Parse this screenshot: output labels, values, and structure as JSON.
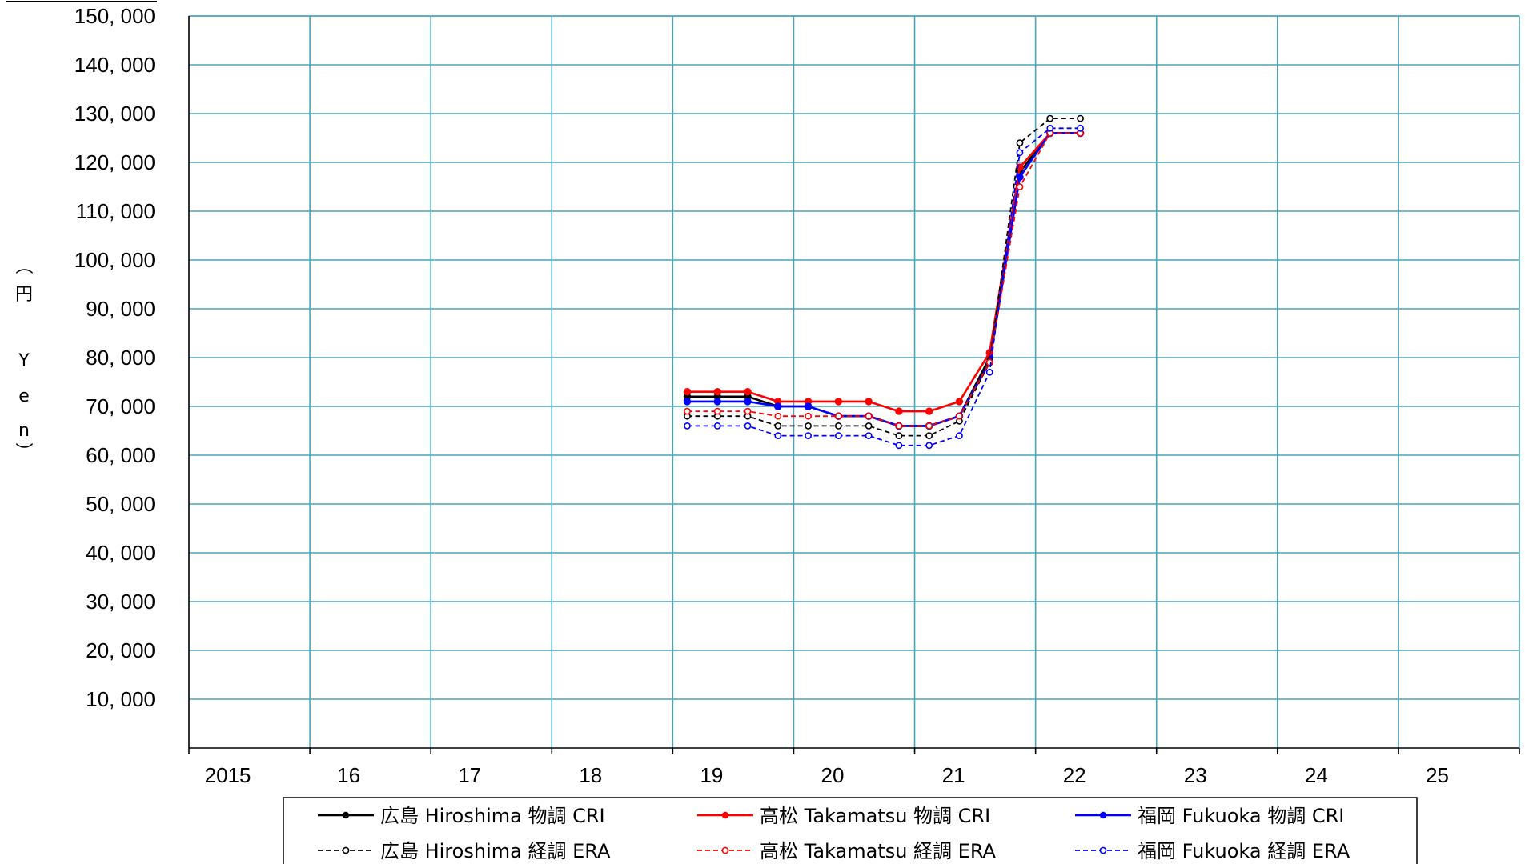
{
  "chart_data": {
    "type": "line",
    "ylabel": [
      "（",
      "円",
      "Y",
      "e",
      "n",
      "）"
    ],
    "xlim": [
      2015,
      2026
    ],
    "ylim": [
      0,
      150000
    ],
    "y_ticks": [
      10000,
      20000,
      30000,
      40000,
      50000,
      60000,
      70000,
      80000,
      90000,
      100000,
      110000,
      120000,
      130000,
      140000,
      150000
    ],
    "y_tick_labels": [
      "10, 000",
      "20, 000",
      "30, 000",
      "40, 000",
      "50, 000",
      "60, 000",
      "70, 000",
      "80, 000",
      "90, 000",
      "100, 000",
      "110, 000",
      "120, 000",
      "130, 000",
      "140, 000",
      "150, 000"
    ],
    "x_ticks": [
      2015,
      2016,
      2017,
      2018,
      2019,
      2020,
      2021,
      2022,
      2023,
      2024,
      2025
    ],
    "x_tick_labels": [
      "2015",
      "16",
      "17",
      "18",
      "19",
      "20",
      "21",
      "22",
      "23",
      "24",
      "25"
    ],
    "grid": true,
    "legend_position": "bottom",
    "x": [
      2019.12,
      2019.37,
      2019.62,
      2019.87,
      2020.12,
      2020.37,
      2020.62,
      2020.87,
      2021.12,
      2021.37,
      2021.62,
      2021.87,
      2022.12,
      2022.37
    ],
    "series": [
      {
        "name": "広島 Hiroshima 物調 CRI",
        "color": "#000000",
        "style": "solid",
        "marker": "filled",
        "values": [
          72000,
          72000,
          72000,
          70000,
          70000,
          68000,
          68000,
          66000,
          66000,
          68000,
          80000,
          118000,
          126000,
          126000
        ]
      },
      {
        "name": "高松 Takamatsu 物調 CRI",
        "color": "#ff0000",
        "style": "solid",
        "marker": "filled",
        "values": [
          73000,
          73000,
          73000,
          71000,
          71000,
          71000,
          71000,
          69000,
          69000,
          71000,
          81000,
          119000,
          126000,
          126000
        ]
      },
      {
        "name": "福岡 Fukuoka  物調 CRI",
        "color": "#0000ff",
        "style": "solid",
        "marker": "filled",
        "values": [
          71000,
          71000,
          71000,
          70000,
          70000,
          68000,
          68000,
          66000,
          66000,
          68000,
          79000,
          117000,
          126000,
          126000
        ]
      },
      {
        "name": "広島 Hiroshima 経調 ERA",
        "color": "#000000",
        "style": "dashed",
        "marker": "open",
        "values": [
          68000,
          68000,
          68000,
          66000,
          66000,
          66000,
          66000,
          64000,
          64000,
          67000,
          79000,
          124000,
          129000,
          129000
        ]
      },
      {
        "name": "高松 Takamatsu 経調 ERA",
        "color": "#ff0000",
        "style": "dashed",
        "marker": "open",
        "values": [
          69000,
          69000,
          69000,
          68000,
          68000,
          68000,
          68000,
          66000,
          66000,
          68000,
          79000,
          115000,
          126000,
          126000
        ]
      },
      {
        "name": "福岡 Fukuoka  経調 ERA",
        "color": "#0000ff",
        "style": "dashed",
        "marker": "open",
        "values": [
          66000,
          66000,
          66000,
          64000,
          64000,
          64000,
          64000,
          62000,
          62000,
          64000,
          77000,
          122000,
          127000,
          127000
        ]
      }
    ]
  }
}
